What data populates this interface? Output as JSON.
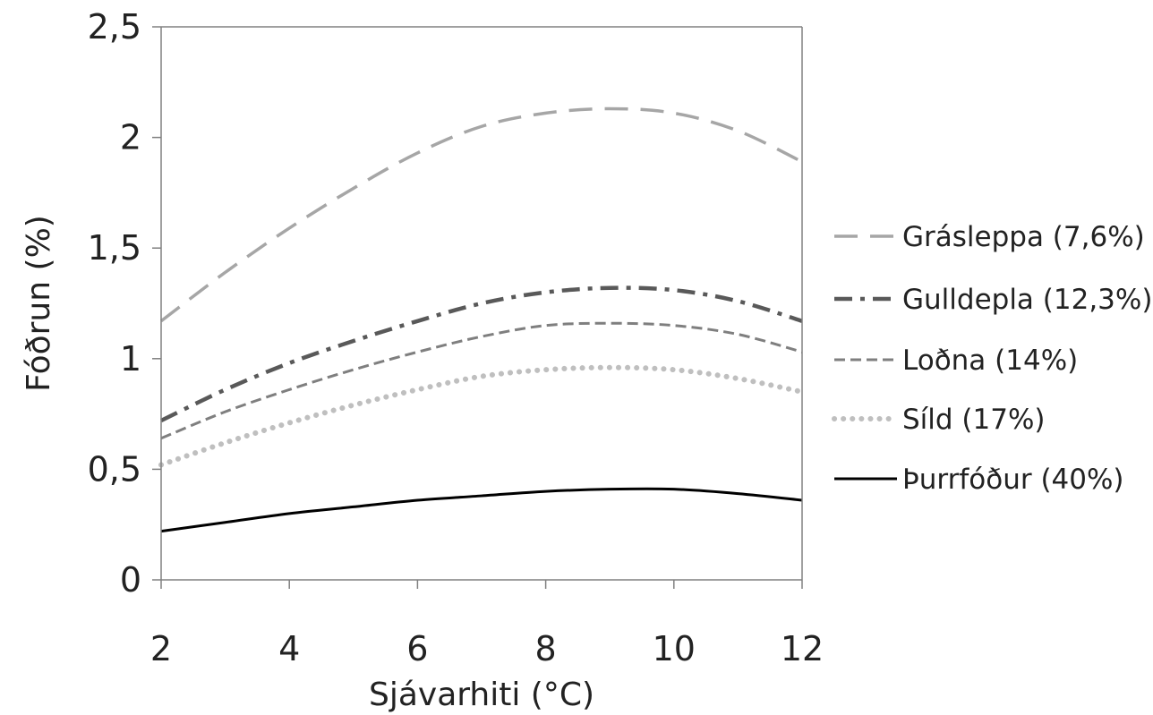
{
  "chart_data": {
    "type": "line",
    "title": "",
    "xlabel": "Sjávarhiti (°C)",
    "ylabel": "Fóðrun (%)",
    "xlim": [
      2,
      12
    ],
    "ylim": [
      0,
      2.5
    ],
    "x_ticks": [
      {
        "value": 2,
        "label": "2"
      },
      {
        "value": 4,
        "label": "4"
      },
      {
        "value": 6,
        "label": "6"
      },
      {
        "value": 8,
        "label": "8"
      },
      {
        "value": 10,
        "label": "10"
      },
      {
        "value": 12,
        "label": "12"
      }
    ],
    "y_ticks": [
      {
        "value": 0,
        "label": "0"
      },
      {
        "value": 0.5,
        "label": "0,5"
      },
      {
        "value": 1,
        "label": "1"
      },
      {
        "value": 1.5,
        "label": "1,5"
      },
      {
        "value": 2,
        "label": "2"
      },
      {
        "value": 2.5,
        "label": "2,5"
      }
    ],
    "grid": false,
    "legend_position": "right",
    "x": [
      2,
      3,
      4,
      5,
      6,
      7,
      8,
      9,
      10,
      11,
      12
    ],
    "series": [
      {
        "name": "Grásleppa (7,6%)",
        "style": "long-dash",
        "color": "#a6a6a6",
        "values": [
          1.17,
          1.39,
          1.59,
          1.77,
          1.93,
          2.05,
          2.11,
          2.13,
          2.11,
          2.03,
          1.89
        ]
      },
      {
        "name": "Gulldepla (12,3%)",
        "style": "dash-dot",
        "color": "#595959",
        "values": [
          0.72,
          0.86,
          0.98,
          1.08,
          1.17,
          1.25,
          1.3,
          1.32,
          1.31,
          1.26,
          1.17
        ]
      },
      {
        "name": "Loðna (14%)",
        "style": "short-dash",
        "color": "#7f7f7f",
        "values": [
          0.64,
          0.76,
          0.86,
          0.95,
          1.03,
          1.1,
          1.15,
          1.16,
          1.15,
          1.11,
          1.03
        ]
      },
      {
        "name": "Síld (17%)",
        "style": "dots",
        "color": "#bfbfbf",
        "values": [
          0.52,
          0.62,
          0.71,
          0.79,
          0.86,
          0.92,
          0.95,
          0.96,
          0.95,
          0.91,
          0.85
        ]
      },
      {
        "name": "Þurrfóður (40%)",
        "style": "solid",
        "color": "#000000",
        "values": [
          0.22,
          0.26,
          0.3,
          0.33,
          0.36,
          0.38,
          0.4,
          0.41,
          0.41,
          0.39,
          0.36
        ]
      }
    ]
  }
}
